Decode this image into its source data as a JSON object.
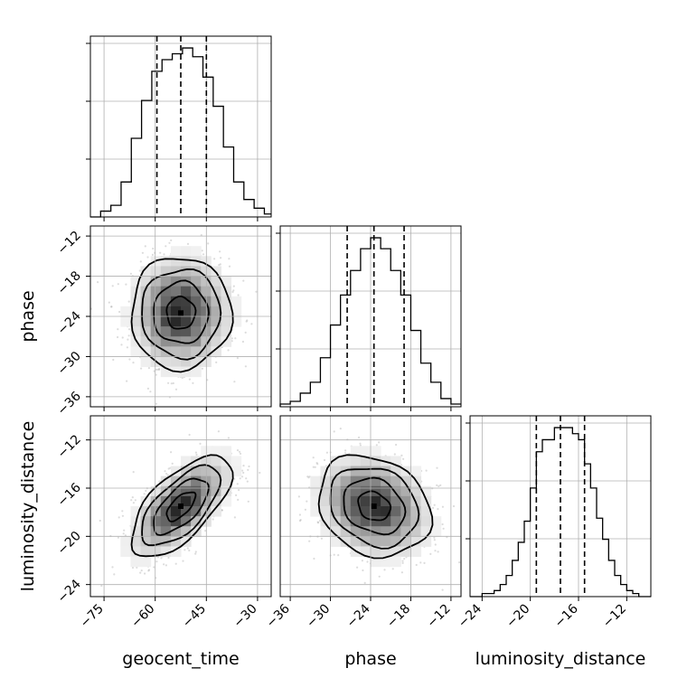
{
  "chart_data": {
    "type": "corner",
    "parameters": [
      {
        "name": "geocent_time",
        "range": [
          -79,
          -26
        ],
        "ticks": [
          -75,
          -60,
          -45,
          -30
        ],
        "median": -52.5,
        "quantile_low": -59.5,
        "quantile_high": -45,
        "hist_edges": [
          -79,
          -76,
          -73,
          -70,
          -67,
          -64,
          -61,
          -58,
          -55,
          -52,
          -49,
          -46,
          -43,
          -40,
          -37,
          -34,
          -31,
          -28,
          -26
        ],
        "hist_counts": [
          0,
          2,
          4,
          12,
          27,
          40,
          50,
          54,
          56,
          58,
          55,
          48,
          38,
          24,
          12,
          6,
          3,
          1
        ]
      },
      {
        "name": "phase",
        "range": [
          -37.5,
          -10.5
        ],
        "ticks": [
          -36,
          -30,
          -24,
          -18,
          -12
        ],
        "median": -23.5,
        "quantile_low": -27.5,
        "quantile_high": -19,
        "hist_edges": [
          -37.5,
          -36,
          -34.5,
          -33,
          -31.5,
          -30,
          -28.5,
          -27,
          -25.5,
          -24,
          -22.5,
          -21,
          -19.5,
          -18,
          -16.5,
          -15,
          -13.5,
          -12,
          -10.5
        ],
        "hist_counts": [
          1,
          2,
          5,
          9,
          18,
          30,
          41,
          50,
          58,
          62,
          58,
          50,
          41,
          28,
          16,
          9,
          3,
          1
        ]
      },
      {
        "name": "luminosity_distance",
        "range": [
          -25,
          -10
        ],
        "ticks": [
          -24,
          -20,
          -16,
          -12
        ],
        "median": -17.5,
        "quantile_low": -19.5,
        "quantile_high": -15.5,
        "hist_edges": [
          -25,
          -24,
          -23,
          -22.5,
          -22,
          -21.5,
          -21,
          -20.5,
          -20,
          -19.5,
          -19,
          -18.5,
          -18,
          -17.5,
          -17,
          -16.5,
          -16,
          -15.5,
          -15,
          -14.5,
          -14,
          -13.5,
          -13,
          -12.5,
          -12,
          -11.5,
          -11,
          -10
        ],
        "hist_counts": [
          0,
          1,
          2,
          4,
          7,
          12,
          18,
          25,
          36,
          48,
          52,
          52,
          56,
          56,
          56,
          54,
          52,
          44,
          36,
          26,
          19,
          12,
          7,
          4,
          2,
          1,
          0
        ]
      }
    ],
    "pairs": [
      {
        "x_param": "geocent_time",
        "y_param": "phase",
        "x_mean": -52.5,
        "y_mean": -23.5,
        "x_sd": 7.0,
        "y_sd": 4.0,
        "correlation": 0.0
      },
      {
        "x_param": "geocent_time",
        "y_param": "luminosity_distance",
        "x_mean": -52.5,
        "y_mean": -17.5,
        "x_sd": 7.0,
        "y_sd": 2.0,
        "correlation": 0.65
      },
      {
        "x_param": "phase",
        "y_param": "luminosity_distance",
        "x_mean": -23.5,
        "y_mean": -17.5,
        "x_sd": 4.0,
        "y_sd": 2.0,
        "correlation": -0.2
      }
    ],
    "contour_levels_sigma": [
      0.6,
      1.15,
      1.65,
      2.1
    ],
    "grid": true
  }
}
